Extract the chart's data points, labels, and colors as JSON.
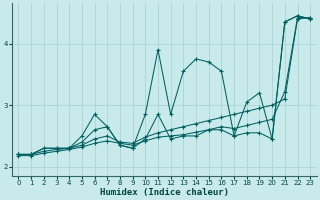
{
  "xlabel": "Humidex (Indice chaleur)",
  "xlim": [
    -0.5,
    23.5
  ],
  "ylim": [
    1.85,
    4.65
  ],
  "yticks": [
    2,
    3,
    4
  ],
  "xticks": [
    0,
    1,
    2,
    3,
    4,
    5,
    6,
    7,
    8,
    9,
    10,
    11,
    12,
    13,
    14,
    15,
    16,
    17,
    18,
    19,
    20,
    21,
    22,
    23
  ],
  "background_color": "#c8eaea",
  "grid_color": "#aad4d4",
  "line_color": "#006060",
  "series": [
    {
      "x": [
        0,
        1,
        2,
        3,
        4,
        5,
        6,
        7,
        8,
        9,
        10,
        11,
        12,
        13,
        14,
        15,
        16,
        17,
        18,
        19,
        20,
        21,
        22,
        23
      ],
      "y": [
        2.2,
        2.2,
        2.3,
        2.3,
        2.3,
        2.5,
        2.85,
        2.65,
        2.35,
        2.3,
        2.85,
        3.9,
        2.85,
        3.55,
        3.75,
        3.7,
        3.55,
        2.5,
        3.05,
        3.2,
        2.45,
        4.35,
        4.45,
        4.4
      ]
    },
    {
      "x": [
        0,
        1,
        2,
        3,
        4,
        5,
        6,
        7,
        8,
        9,
        10,
        11,
        12,
        13,
        14,
        15,
        16,
        17,
        18,
        19,
        20,
        21,
        22,
        23
      ],
      "y": [
        2.2,
        2.2,
        2.3,
        2.3,
        2.3,
        2.4,
        2.6,
        2.65,
        2.35,
        2.3,
        2.45,
        2.85,
        2.45,
        2.5,
        2.5,
        2.6,
        2.6,
        2.5,
        2.55,
        2.55,
        2.45,
        4.35,
        4.45,
        4.4
      ]
    },
    {
      "x": [
        0,
        1,
        2,
        3,
        4,
        5,
        6,
        7,
        8,
        9,
        10,
        11,
        12,
        13,
        14,
        15,
        16,
        17,
        18,
        19,
        20,
        21,
        22,
        23
      ],
      "y": [
        2.2,
        2.2,
        2.25,
        2.28,
        2.3,
        2.35,
        2.45,
        2.5,
        2.4,
        2.38,
        2.48,
        2.55,
        2.6,
        2.65,
        2.7,
        2.75,
        2.8,
        2.85,
        2.9,
        2.95,
        3.0,
        3.1,
        4.4,
        4.42
      ]
    },
    {
      "x": [
        0,
        1,
        2,
        3,
        4,
        5,
        6,
        7,
        8,
        9,
        10,
        11,
        12,
        13,
        14,
        15,
        16,
        17,
        18,
        19,
        20,
        21,
        22,
        23
      ],
      "y": [
        2.18,
        2.18,
        2.22,
        2.25,
        2.28,
        2.32,
        2.38,
        2.42,
        2.38,
        2.35,
        2.42,
        2.48,
        2.5,
        2.52,
        2.56,
        2.6,
        2.65,
        2.62,
        2.67,
        2.72,
        2.77,
        3.22,
        4.42,
        4.42
      ]
    }
  ]
}
